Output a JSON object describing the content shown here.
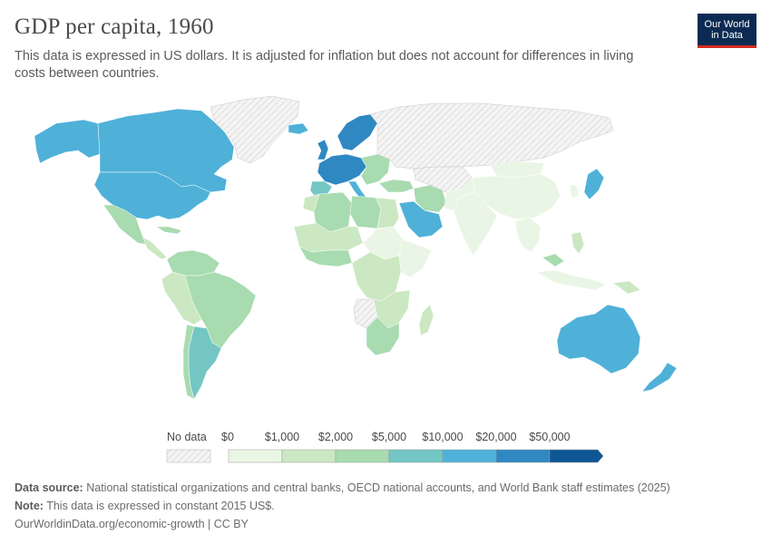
{
  "header": {
    "title": "GDP per capita, 1960",
    "subtitle": "This data is expressed in US dollars. It is adjusted for inflation but does not account for differences in living costs between countries."
  },
  "logo": {
    "line1": "Our World",
    "line2": "in Data"
  },
  "legend": {
    "no_data_label": "No data",
    "bins": [
      {
        "label": "$0",
        "color": "#eaf6e5"
      },
      {
        "label": "$1,000",
        "color": "#cbe8c2"
      },
      {
        "label": "$2,000",
        "color": "#a8dbb0"
      },
      {
        "label": "$5,000",
        "color": "#73c6c3"
      },
      {
        "label": "$10,000",
        "color": "#4fb1d8"
      },
      {
        "label": "$20,000",
        "color": "#2f88c2"
      },
      {
        "label": "$50,000",
        "color": "#0e5694"
      }
    ]
  },
  "colors": {
    "no_data": "#e9e9e9",
    "very_low": "#eaf6e5",
    "low": "#cbe8c2",
    "mid": "#a8dbb0",
    "upper_mid": "#73c6c3",
    "high": "#4fb1d8",
    "very_high": "#2f88c2"
  },
  "footer": {
    "source_label": "Data source:",
    "source_text": "National statistical organizations and central banks, OECD national accounts, and World Bank staff estimates (2025)",
    "note_label": "Note:",
    "note_text": "This data is expressed in constant 2015 US$.",
    "url": "OurWorldinData.org/economic-growth | CC BY"
  }
}
